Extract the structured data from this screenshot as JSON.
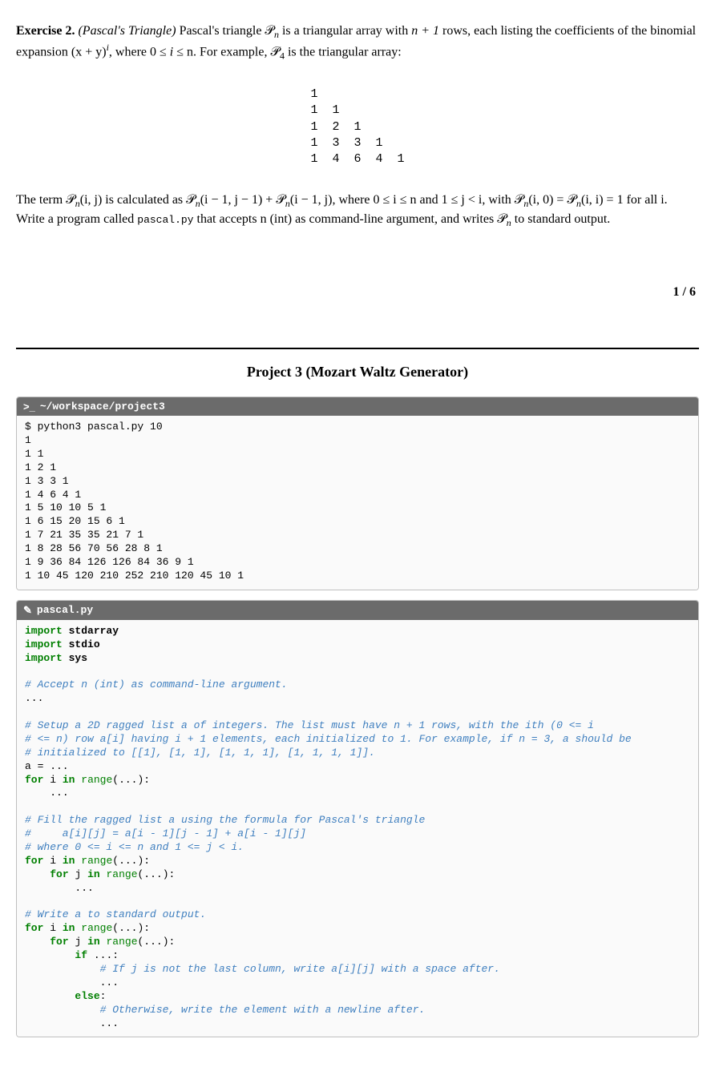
{
  "exercise": {
    "label": "Exercise 2.",
    "name_italic": "(Pascal's Triangle)",
    "intro_a": " Pascal's triangle ",
    "sym_P": "𝒫",
    "intro_b": " is a triangular array with ",
    "nrows": "n + 1",
    "intro_c": " rows, each listing the coefficients of the binomial expansion ",
    "binom": "(x + y)",
    "sup_i": "i",
    "intro_d": ", where 0 ≤ ",
    "le_n": " ≤ n",
    "intro_e": ". For example, ",
    "P4": "𝒫",
    "sub4": "4",
    "intro_f": " is the triangular array:"
  },
  "triangle": "1\n1  1\n1  2  1\n1  3  3  1\n1  4  6  4  1",
  "recurrence": {
    "a": "The term ",
    "Pij": "𝒫",
    "subn": "n",
    "args1": "(i, j)",
    "b": " is calculated as ",
    "args2": "(i − 1, j − 1) + ",
    "args3": "(i − 1, j)",
    "c": ", where 0 ≤ i ≤ n and 1 ≤ j < i, with ",
    "base1": "(i, 0) = ",
    "base2": "(i, i) = 1",
    "d": " for all i. Write a program called ",
    "prog": "pascal.py",
    "e": " that accepts n (int) as command-line argument, and writes ",
    "f": " to standard output."
  },
  "page_counter": "1 / 6",
  "project_title": "Project 3 (Mozart Waltz Generator)",
  "terminal": {
    "icon": ">_",
    "title": "~/workspace/project3",
    "content": "$ python3 pascal.py 10\n1\n1 1\n1 2 1\n1 3 3 1\n1 4 6 4 1\n1 5 10 10 5 1\n1 6 15 20 15 6 1\n1 7 21 35 35 21 7 1\n1 8 28 56 70 56 28 8 1\n1 9 36 84 126 126 84 36 9 1\n1 10 45 120 210 252 210 120 45 10 1"
  },
  "editor": {
    "icon": "✎",
    "title": "pascal.py"
  },
  "code": {
    "import_kw": "import",
    "mod1": "stdarray",
    "mod2": "stdio",
    "mod3": "sys",
    "c1": "# Accept n (int) as command-line argument.",
    "dots": "...",
    "c2a": "# Setup a 2D ragged list a of integers. The list must have n + 1 rows, with the ith (0 <= i",
    "c2b": "# <= n) row a[i] having i + 1 elements, each initialized to 1. For example, if n = 3, a should be",
    "c2c": "# initialized to [[1], [1, 1], [1, 1, 1], [1, 1, 1, 1]].",
    "assign_a": "a = ...",
    "for_kw": "for",
    "in_kw": "in",
    "range_kw": "range",
    "loop_tail": "(...):",
    "var_i": "i",
    "var_j": "j",
    "c3a": "# Fill the ragged list a using the formula for Pascal's triangle",
    "c3b": "#     a[i][j] = a[i - 1][j - 1] + a[i - 1][j]",
    "c3c": "# where 0 <= i <= n and 1 <= j < i.",
    "c4": "# Write a to standard output.",
    "if_kw": "if",
    "if_tail": "...:",
    "c5": "# If j is not the last column, write a[i][j] with a space after.",
    "else_kw": "else",
    "colon": ":",
    "c6": "# Otherwise, write the element with a newline after."
  },
  "style": {
    "kw_color": "#007f00",
    "comment_color": "#3f7fbf",
    "panel_header_bg": "#6b6b6b",
    "panel_body_bg": "#fafafa",
    "border_color": "#bfbfbf"
  }
}
